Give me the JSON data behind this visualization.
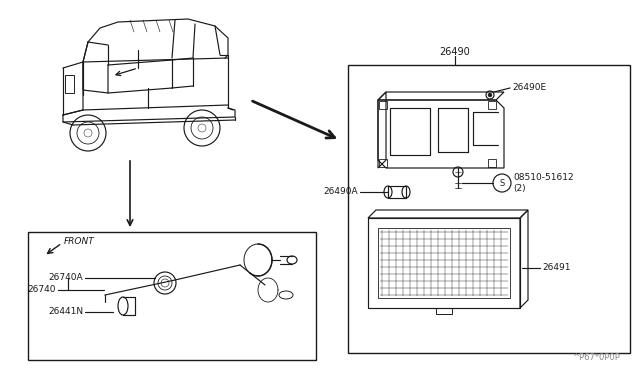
{
  "bg_color": "#ffffff",
  "line_color": "#1a1a1a",
  "part_label_26490": "26490",
  "part_label_26490E": "26490E",
  "part_label_26490A": "26490A",
  "part_label_screw": "08510-51612",
  "part_label_screw2": "(2)",
  "part_label_26491": "26491",
  "part_label_26740": "26740",
  "part_label_26740A": "26740A",
  "part_label_26441N": "26441N",
  "part_label_front": "FRONT",
  "watermark": "^P67*0P0P"
}
